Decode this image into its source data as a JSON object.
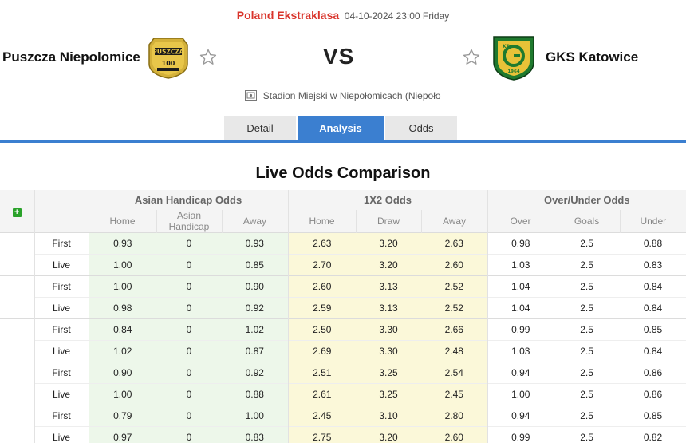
{
  "header": {
    "league": "Poland Ekstraklasa",
    "datetime": "04-10-2024 23:00 Friday",
    "vs": "VS",
    "venue": "Stadion Miejski w Niepołomicach (Niepoło"
  },
  "home_team": {
    "name": "Puszcza Niepolomice",
    "logo_text_top": "PUSZCZA",
    "logo_text_num": "100"
  },
  "away_team": {
    "name": "GKS Katowice",
    "logo_text_top": "KS",
    "logo_text_year": "1964"
  },
  "tabs": [
    {
      "label": "Detail",
      "active": false
    },
    {
      "label": "Analysis",
      "active": true
    },
    {
      "label": "Odds",
      "active": false
    }
  ],
  "section_title": "Live Odds Comparison",
  "table": {
    "group_headers": [
      "Asian Handicap Odds",
      "1X2 Odds",
      "Over/Under Odds"
    ],
    "sub_headers": [
      "Home",
      "Asian Handicap",
      "Away",
      "Home",
      "Draw",
      "Away",
      "Over",
      "Goals",
      "Under"
    ],
    "add_label": "+",
    "rows": [
      {
        "type": "First",
        "ah": [
          "0.93",
          "0",
          "0.93"
        ],
        "x12": [
          "2.63",
          "3.20",
          "2.63"
        ],
        "ou": [
          "0.98",
          "2.5",
          "0.88"
        ]
      },
      {
        "type": "Live",
        "ah": [
          "1.00",
          "0",
          "0.85"
        ],
        "x12": [
          "2.70",
          "3.20",
          "2.60"
        ],
        "ou": [
          "1.03",
          "2.5",
          "0.83"
        ]
      },
      {
        "type": "First",
        "ah": [
          "1.00",
          "0",
          "0.90"
        ],
        "x12": [
          "2.60",
          "3.13",
          "2.52"
        ],
        "ou": [
          "1.04",
          "2.5",
          "0.84"
        ]
      },
      {
        "type": "Live",
        "ah": [
          "0.98",
          "0",
          "0.92"
        ],
        "x12": [
          "2.59",
          "3.13",
          "2.52"
        ],
        "ou": [
          "1.04",
          "2.5",
          "0.84"
        ]
      },
      {
        "type": "First",
        "ah": [
          "0.84",
          "0",
          "1.02"
        ],
        "x12": [
          "2.50",
          "3.30",
          "2.66"
        ],
        "ou": [
          "0.99",
          "2.5",
          "0.85"
        ]
      },
      {
        "type": "Live",
        "ah": [
          "1.02",
          "0",
          "0.87"
        ],
        "x12": [
          "2.69",
          "3.30",
          "2.48"
        ],
        "ou": [
          "1.03",
          "2.5",
          "0.84"
        ]
      },
      {
        "type": "First",
        "ah": [
          "0.90",
          "0",
          "0.92"
        ],
        "x12": [
          "2.51",
          "3.25",
          "2.54"
        ],
        "ou": [
          "0.94",
          "2.5",
          "0.86"
        ]
      },
      {
        "type": "Live",
        "ah": [
          "1.00",
          "0",
          "0.88"
        ],
        "x12": [
          "2.61",
          "3.25",
          "2.45"
        ],
        "ou": [
          "1.00",
          "2.5",
          "0.86"
        ]
      },
      {
        "type": "First",
        "ah": [
          "0.79",
          "0",
          "1.00"
        ],
        "x12": [
          "2.45",
          "3.10",
          "2.80"
        ],
        "ou": [
          "0.94",
          "2.5",
          "0.85"
        ]
      },
      {
        "type": "Live",
        "ah": [
          "0.97",
          "0",
          "0.83"
        ],
        "x12": [
          "2.75",
          "3.20",
          "2.60"
        ],
        "ou": [
          "0.99",
          "2.5",
          "0.82"
        ]
      }
    ]
  },
  "colors": {
    "league": "#d9342b",
    "tab_active": "#3b7fd0",
    "ah_bg": "#edf7ea",
    "x12_bg": "#fbf8d9",
    "plus_btn": "#2aa22a"
  },
  "icons": {
    "star": "star-outline-icon",
    "venue": "stadium-icon",
    "add": "plus-icon"
  }
}
